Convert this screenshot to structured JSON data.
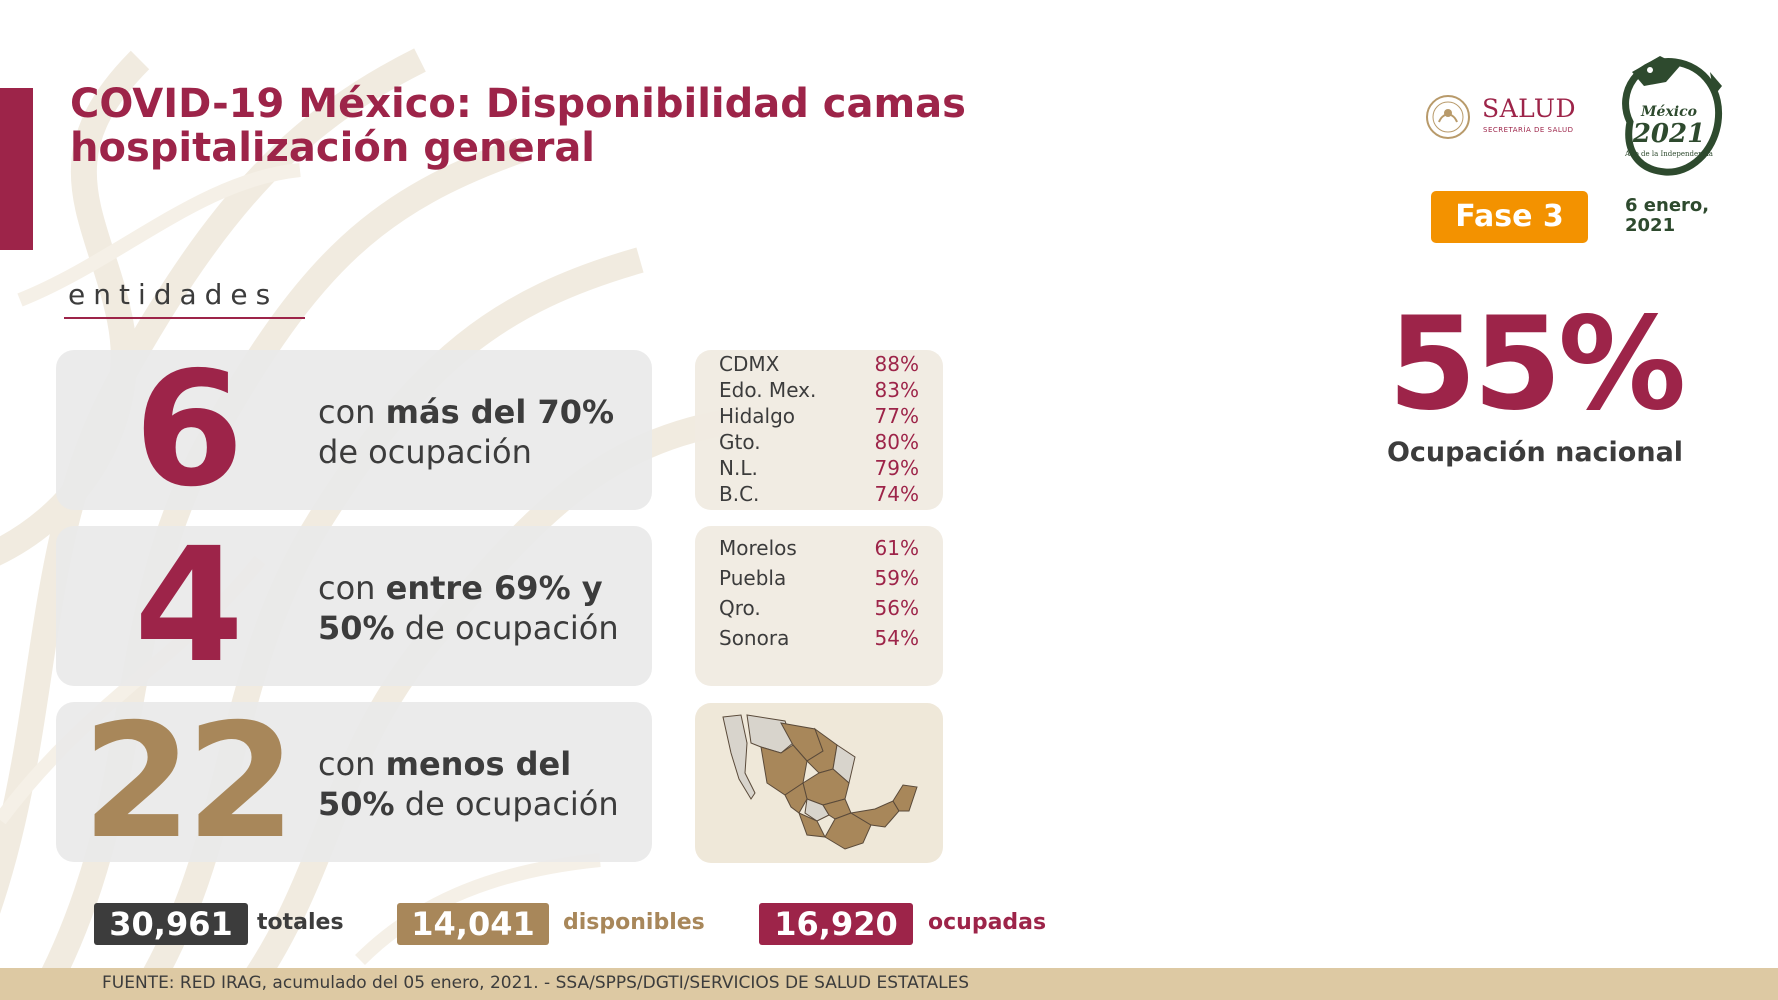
{
  "title": {
    "line1": "COVID-19 México: Disponibilidad camas",
    "line2": "hospitalización general"
  },
  "logos": {
    "salud": {
      "name": "SALUD",
      "subtitle": "SECRETARÍA DE SALUD",
      "icon": "salud-emblem-icon"
    },
    "mexico2021": {
      "text_top": "México",
      "year": "2021",
      "text_bottom": "Año de la Independencia",
      "icon": "serpent-emblem-icon"
    }
  },
  "phase": {
    "label": "Fase 3",
    "color": "#f39200"
  },
  "date": {
    "line1": "6 enero,",
    "line2": "2021"
  },
  "national": {
    "value": "55%",
    "label": "Ocupación nacional"
  },
  "section": {
    "label": "entidades"
  },
  "groups": [
    {
      "count": "6",
      "count_color": "#9d2449",
      "text_normal_1": "con ",
      "text_bold_1": "más del 70%",
      "text_normal_2": "de ocupación",
      "states": [
        {
          "name": "CDMX",
          "pct": "88%"
        },
        {
          "name": "Edo. Mex.",
          "pct": "83%"
        },
        {
          "name": "Hidalgo",
          "pct": "77%"
        },
        {
          "name": "Gto.",
          "pct": "80%"
        },
        {
          "name": "N.L.",
          "pct": "79%"
        },
        {
          "name": "B.C.",
          "pct": "74%"
        }
      ]
    },
    {
      "count": "4",
      "count_color": "#9d2449",
      "text_normal_1": "con ",
      "text_bold_1": "entre 69% y",
      "text_bold_2": "50%",
      "text_normal_2": " de ocupación",
      "states": [
        {
          "name": "Morelos",
          "pct": "61%"
        },
        {
          "name": "Puebla",
          "pct": "59%"
        },
        {
          "name": "Qro.",
          "pct": "56%"
        },
        {
          "name": "Sonora",
          "pct": "54%"
        }
      ]
    },
    {
      "count": "22",
      "count_color": "#a8875a",
      "text_normal_1": "con ",
      "text_bold_1": "menos del",
      "text_bold_2": "50%",
      "text_normal_2": " de ocupación",
      "map_icon": "mexico-map-icon"
    }
  ],
  "totals": [
    {
      "value": "30,961",
      "label": "totales",
      "color": "#3c3c3c"
    },
    {
      "value": "14,041",
      "label": "disponibles",
      "color": "#a8875a"
    },
    {
      "value": "16,920",
      "label": "ocupadas",
      "color": "#9d2449"
    }
  ],
  "footer": {
    "text": "FUENTE: RED IRAG, acumulado del 05 enero, 2021. -  SSA/SPPS/DGTI/SERVICIOS DE SALUD ESTATALES"
  },
  "colors": {
    "guinda": "#9d2449",
    "dorado": "#a8875a",
    "gris": "#3c3c3c",
    "beige": "#ddc9a3"
  }
}
